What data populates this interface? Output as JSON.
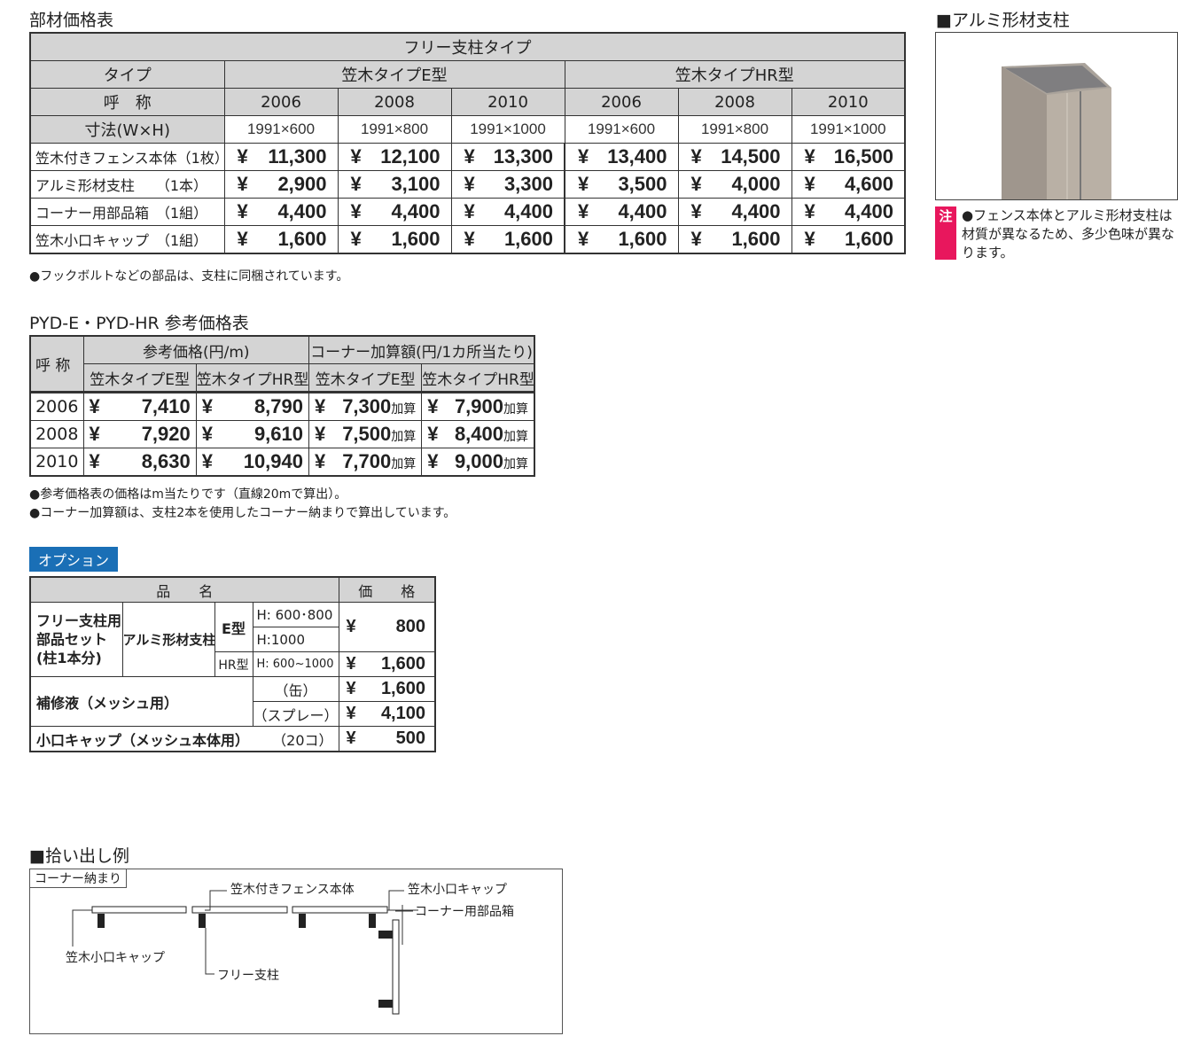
{
  "main": {
    "title": "部材価格表",
    "caption": "フリー支柱タイプ",
    "type_label": "タイプ",
    "e_type": "笠木タイプE型",
    "hr_type": "笠木タイプHR型",
    "name_label": "呼　称",
    "size_label": "寸法(W×H)",
    "names": [
      "2006",
      "2008",
      "2010",
      "2006",
      "2008",
      "2010"
    ],
    "sizes": [
      "1991×600",
      "1991×800",
      "1991×1000",
      "1991×600",
      "1991×800",
      "1991×1000"
    ],
    "rows": [
      {
        "label": "笠木付きフェンス本体（1枚）",
        "prices": [
          "11,300",
          "12,100",
          "13,300",
          "13,400",
          "14,500",
          "16,500"
        ]
      },
      {
        "label": "アルミ形材支柱　　（1本）",
        "prices": [
          "2,900",
          "3,100",
          "3,300",
          "3,500",
          "4,000",
          "4,600"
        ]
      },
      {
        "label": "コーナー用部品箱　（1組）",
        "prices": [
          "4,400",
          "4,400",
          "4,400",
          "4,400",
          "4,400",
          "4,400"
        ]
      },
      {
        "label": "笠木小口キャップ　（1組）",
        "prices": [
          "1,600",
          "1,600",
          "1,600",
          "1,600",
          "1,600",
          "1,600"
        ]
      }
    ],
    "yen": "¥",
    "note": "●フックボルトなどの部品は、支柱に同梱されています。"
  },
  "ref": {
    "title": "PYD-E・PYD-HR 参考価格表",
    "name_label": "呼 称",
    "ref_price": "参考価格(円/m)",
    "corner": "コーナー加算額(円/1カ所当たり)",
    "e_type": "笠木タイプE型",
    "hr_type": "笠木タイプHR型",
    "add": "加算",
    "rows": [
      {
        "name": "2006",
        "e": "7,410",
        "hr": "8,790",
        "ce": "7,300",
        "chr": "7,900"
      },
      {
        "name": "2008",
        "e": "7,920",
        "hr": "9,610",
        "ce": "7,500",
        "chr": "8,400"
      },
      {
        "name": "2010",
        "e": "8,630",
        "hr": "10,940",
        "ce": "7,700",
        "chr": "9,000"
      }
    ],
    "notes": [
      "●参考価格表の価格はm当たりです（直線20mで算出）。",
      "●コーナー加算額は、支柱2本を使用したコーナー納まりで算出しています。"
    ]
  },
  "option": {
    "tag": "オプション",
    "h_name": "品　　名",
    "h_price": "価　　格",
    "set": "フリー支柱用\n部品セット\n(柱1本分)",
    "post": "アルミ形材支柱",
    "e": "E型",
    "hr": "HR型",
    "h1": "H:  600･800",
    "h2": "H:1000",
    "h3": "H:  600~1000",
    "p1": "800",
    "p2": "1,600",
    "repair": "補修液（メッシュ用）",
    "can": "（缶）",
    "spray": "（スプレー）",
    "p3": "1,600",
    "p4": "4,100",
    "cap": "小口キャップ（メッシュ本体用）",
    "cap_qty": "（20コ）",
    "p5": "500",
    "yen": "¥",
    "tag_color": "#1a6fb6"
  },
  "side": {
    "title": "■アルミ形材支柱",
    "note_mark": "注",
    "note": "●フェンス本体とアルミ形材支柱は材質が異なるため、多少色味が異なります。",
    "note_color": "#e8175d"
  },
  "diagram": {
    "title": "■拾い出し例",
    "box_label": "コーナー納まり",
    "l1": "笠木付きフェンス本体",
    "l2": "笠木小口キャップ",
    "l3": "コーナー用部品箱",
    "l4": "笠木小口キャップ",
    "l5": "フリー支柱"
  }
}
